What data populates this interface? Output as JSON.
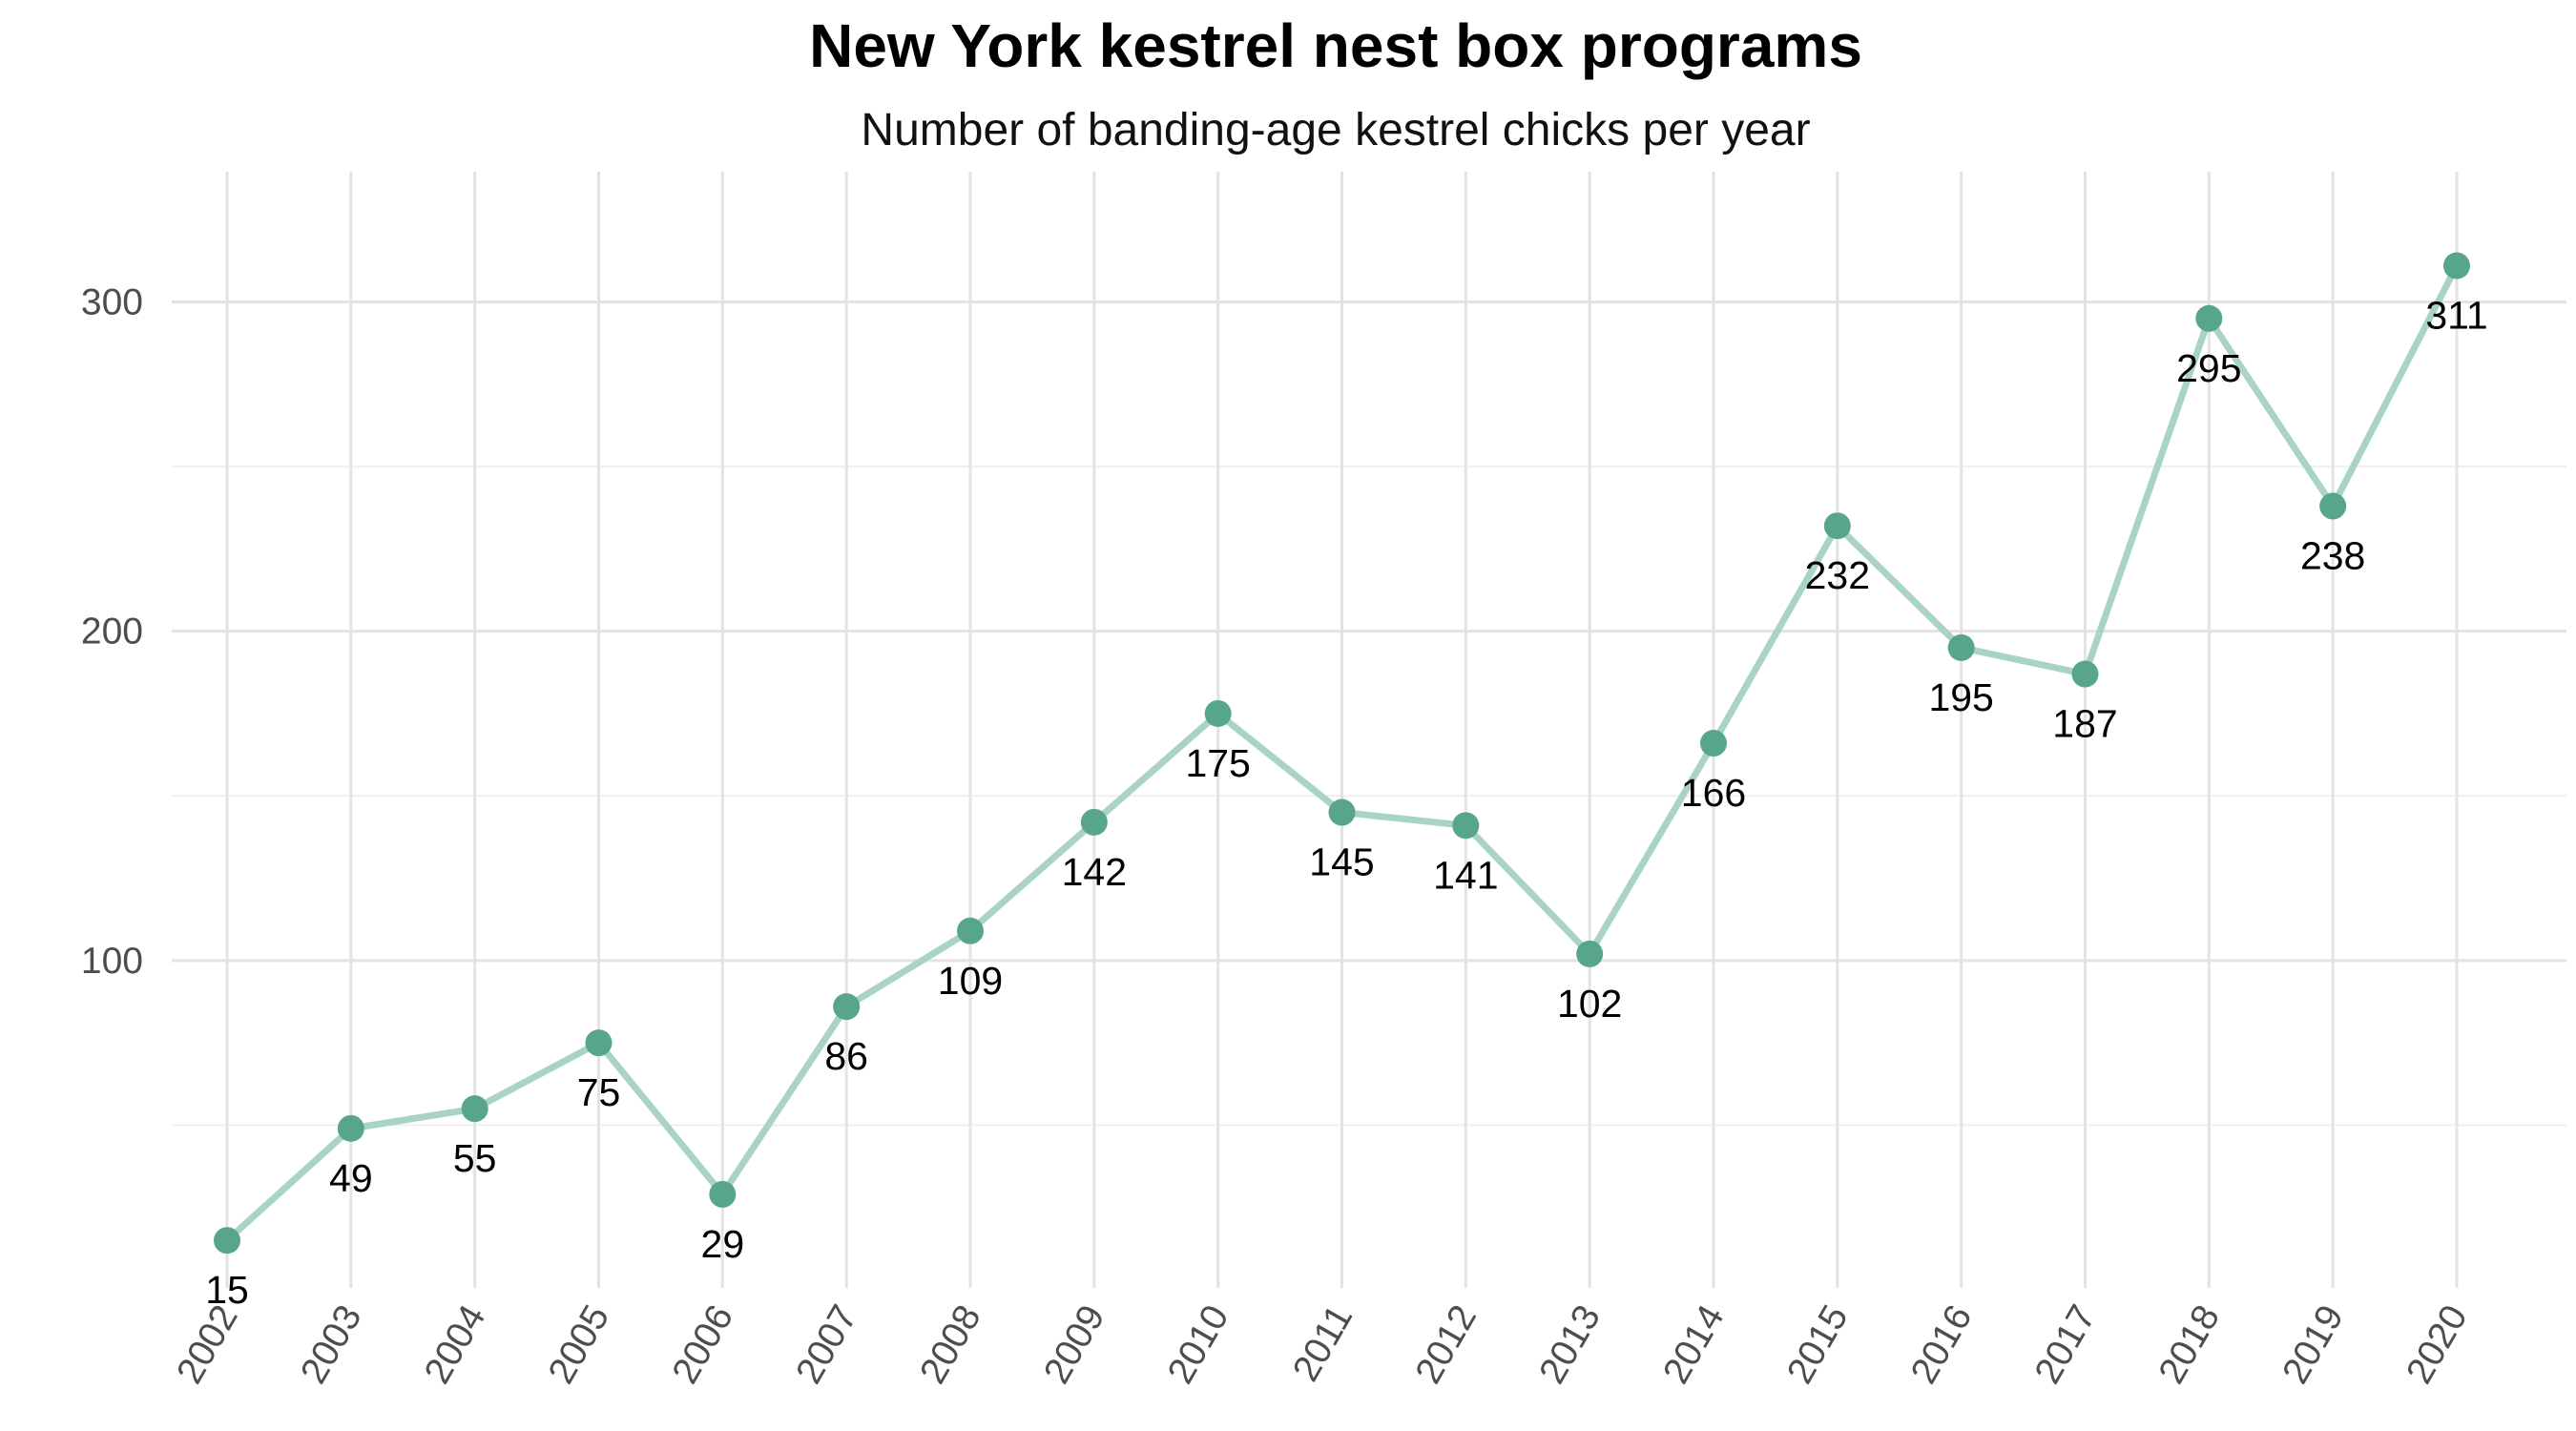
{
  "chart_data": {
    "type": "line",
    "title": "New York kestrel nest box programs",
    "subtitle": "Number of banding-age kestrel chicks per year",
    "xlabel": "",
    "ylabel": "",
    "x": [
      "2002",
      "2003",
      "2004",
      "2005",
      "2006",
      "2007",
      "2008",
      "2009",
      "2010",
      "2011",
      "2012",
      "2013",
      "2014",
      "2015",
      "2016",
      "2017",
      "2018",
      "2019",
      "2020"
    ],
    "series": [
      {
        "values": [
          15,
          49,
          55,
          75,
          29,
          86,
          109,
          142,
          175,
          145,
          141,
          102,
          166,
          232,
          195,
          187,
          295,
          238,
          311
        ]
      }
    ],
    "data_labels": [
      "15",
      "49",
      "55",
      "75",
      "29",
      "86",
      "109",
      "142",
      "175",
      "145",
      "141",
      "102",
      "166",
      "232",
      "195",
      "187",
      "295",
      "238",
      "311"
    ],
    "y_ticks": [
      100,
      200,
      300
    ],
    "y_tick_labels": [
      "100",
      "200",
      "300"
    ],
    "ylim": [
      0,
      325
    ],
    "grid": true,
    "legend": "none",
    "colors": {
      "line": "#a9d3c6",
      "point": "#58a58d"
    }
  }
}
